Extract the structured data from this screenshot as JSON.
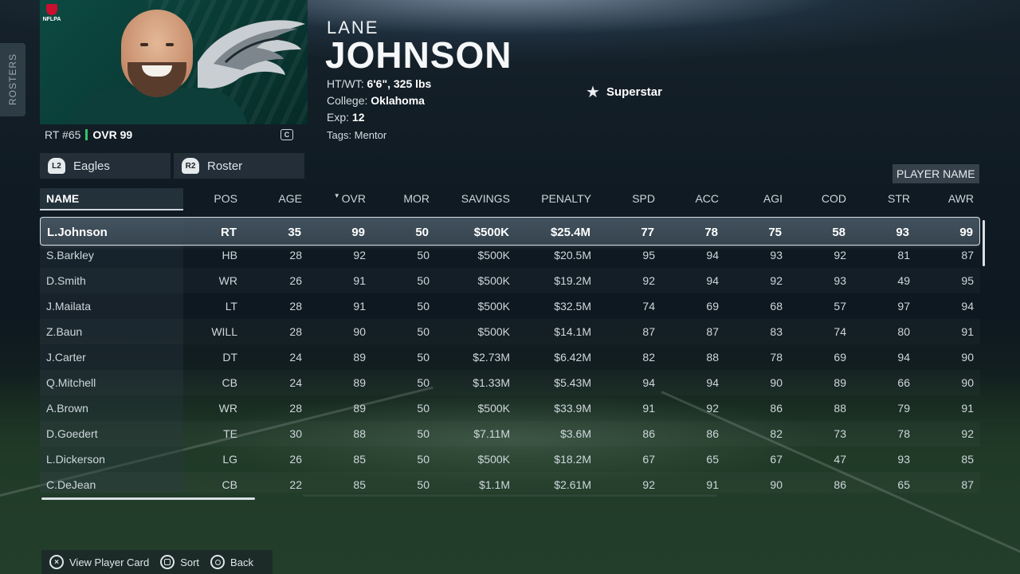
{
  "side_tab": {
    "label": "ROSTERS"
  },
  "card": {
    "brand": "NFLPA",
    "position_number": "RT #65",
    "ovr": "OVR 99",
    "card_icon": "C"
  },
  "player": {
    "first_name": "LANE",
    "last_name": "JOHNSON",
    "htwt_label": "HT/WT:",
    "htwt_value": "6'6\", 325 lbs",
    "college_label": "College:",
    "college_value": "Oklahoma",
    "exp_label": "Exp:",
    "exp_value": "12",
    "tags": "Tags: Mentor",
    "dev_trait": "Superstar"
  },
  "selectors": {
    "team": {
      "button": "L2",
      "label": "Eagles"
    },
    "view": {
      "button": "R2",
      "label": "Roster"
    }
  },
  "search_mode": "PLAYER NAME",
  "table": {
    "columns": [
      "NAME",
      "POS",
      "AGE",
      "OVR",
      "MOR",
      "SAVINGS",
      "PENALTY",
      "SPD",
      "ACC",
      "AGI",
      "COD",
      "STR",
      "AWR"
    ],
    "sorted_column": "OVR",
    "rows": [
      [
        "L.Johnson",
        "RT",
        "35",
        "99",
        "50",
        "$500K",
        "$25.4M",
        "77",
        "78",
        "75",
        "58",
        "93",
        "99"
      ],
      [
        "S.Barkley",
        "HB",
        "28",
        "92",
        "50",
        "$500K",
        "$20.5M",
        "95",
        "94",
        "93",
        "92",
        "81",
        "87"
      ],
      [
        "D.Smith",
        "WR",
        "26",
        "91",
        "50",
        "$500K",
        "$19.2M",
        "92",
        "94",
        "92",
        "93",
        "49",
        "95"
      ],
      [
        "J.Mailata",
        "LT",
        "28",
        "91",
        "50",
        "$500K",
        "$32.5M",
        "74",
        "69",
        "68",
        "57",
        "97",
        "94"
      ],
      [
        "Z.Baun",
        "WILL",
        "28",
        "90",
        "50",
        "$500K",
        "$14.1M",
        "87",
        "87",
        "83",
        "74",
        "80",
        "91"
      ],
      [
        "J.Carter",
        "DT",
        "24",
        "89",
        "50",
        "$2.73M",
        "$6.42M",
        "82",
        "88",
        "78",
        "69",
        "94",
        "90"
      ],
      [
        "Q.Mitchell",
        "CB",
        "24",
        "89",
        "50",
        "$1.33M",
        "$5.43M",
        "94",
        "94",
        "90",
        "89",
        "66",
        "90"
      ],
      [
        "A.Brown",
        "WR",
        "28",
        "89",
        "50",
        "$500K",
        "$33.9M",
        "91",
        "92",
        "86",
        "88",
        "79",
        "91"
      ],
      [
        "D.Goedert",
        "TE",
        "30",
        "88",
        "50",
        "$7.11M",
        "$3.6M",
        "86",
        "86",
        "82",
        "73",
        "78",
        "92"
      ],
      [
        "L.Dickerson",
        "LG",
        "26",
        "85",
        "50",
        "$500K",
        "$18.2M",
        "67",
        "65",
        "67",
        "47",
        "93",
        "85"
      ],
      [
        "C.DeJean",
        "CB",
        "22",
        "85",
        "50",
        "$1.1M",
        "$2.61M",
        "92",
        "91",
        "90",
        "86",
        "65",
        "87"
      ]
    ]
  },
  "hints": [
    {
      "glyph": "×",
      "icon": "cross-button-icon",
      "label": "View Player Card"
    },
    {
      "glyph": "square",
      "icon": "square-button-icon",
      "label": "Sort"
    },
    {
      "glyph": "circle",
      "icon": "circle-button-icon",
      "label": "Back"
    }
  ],
  "colors": {
    "accent_green": "#31c46b",
    "team_green": "#0c4a42"
  }
}
